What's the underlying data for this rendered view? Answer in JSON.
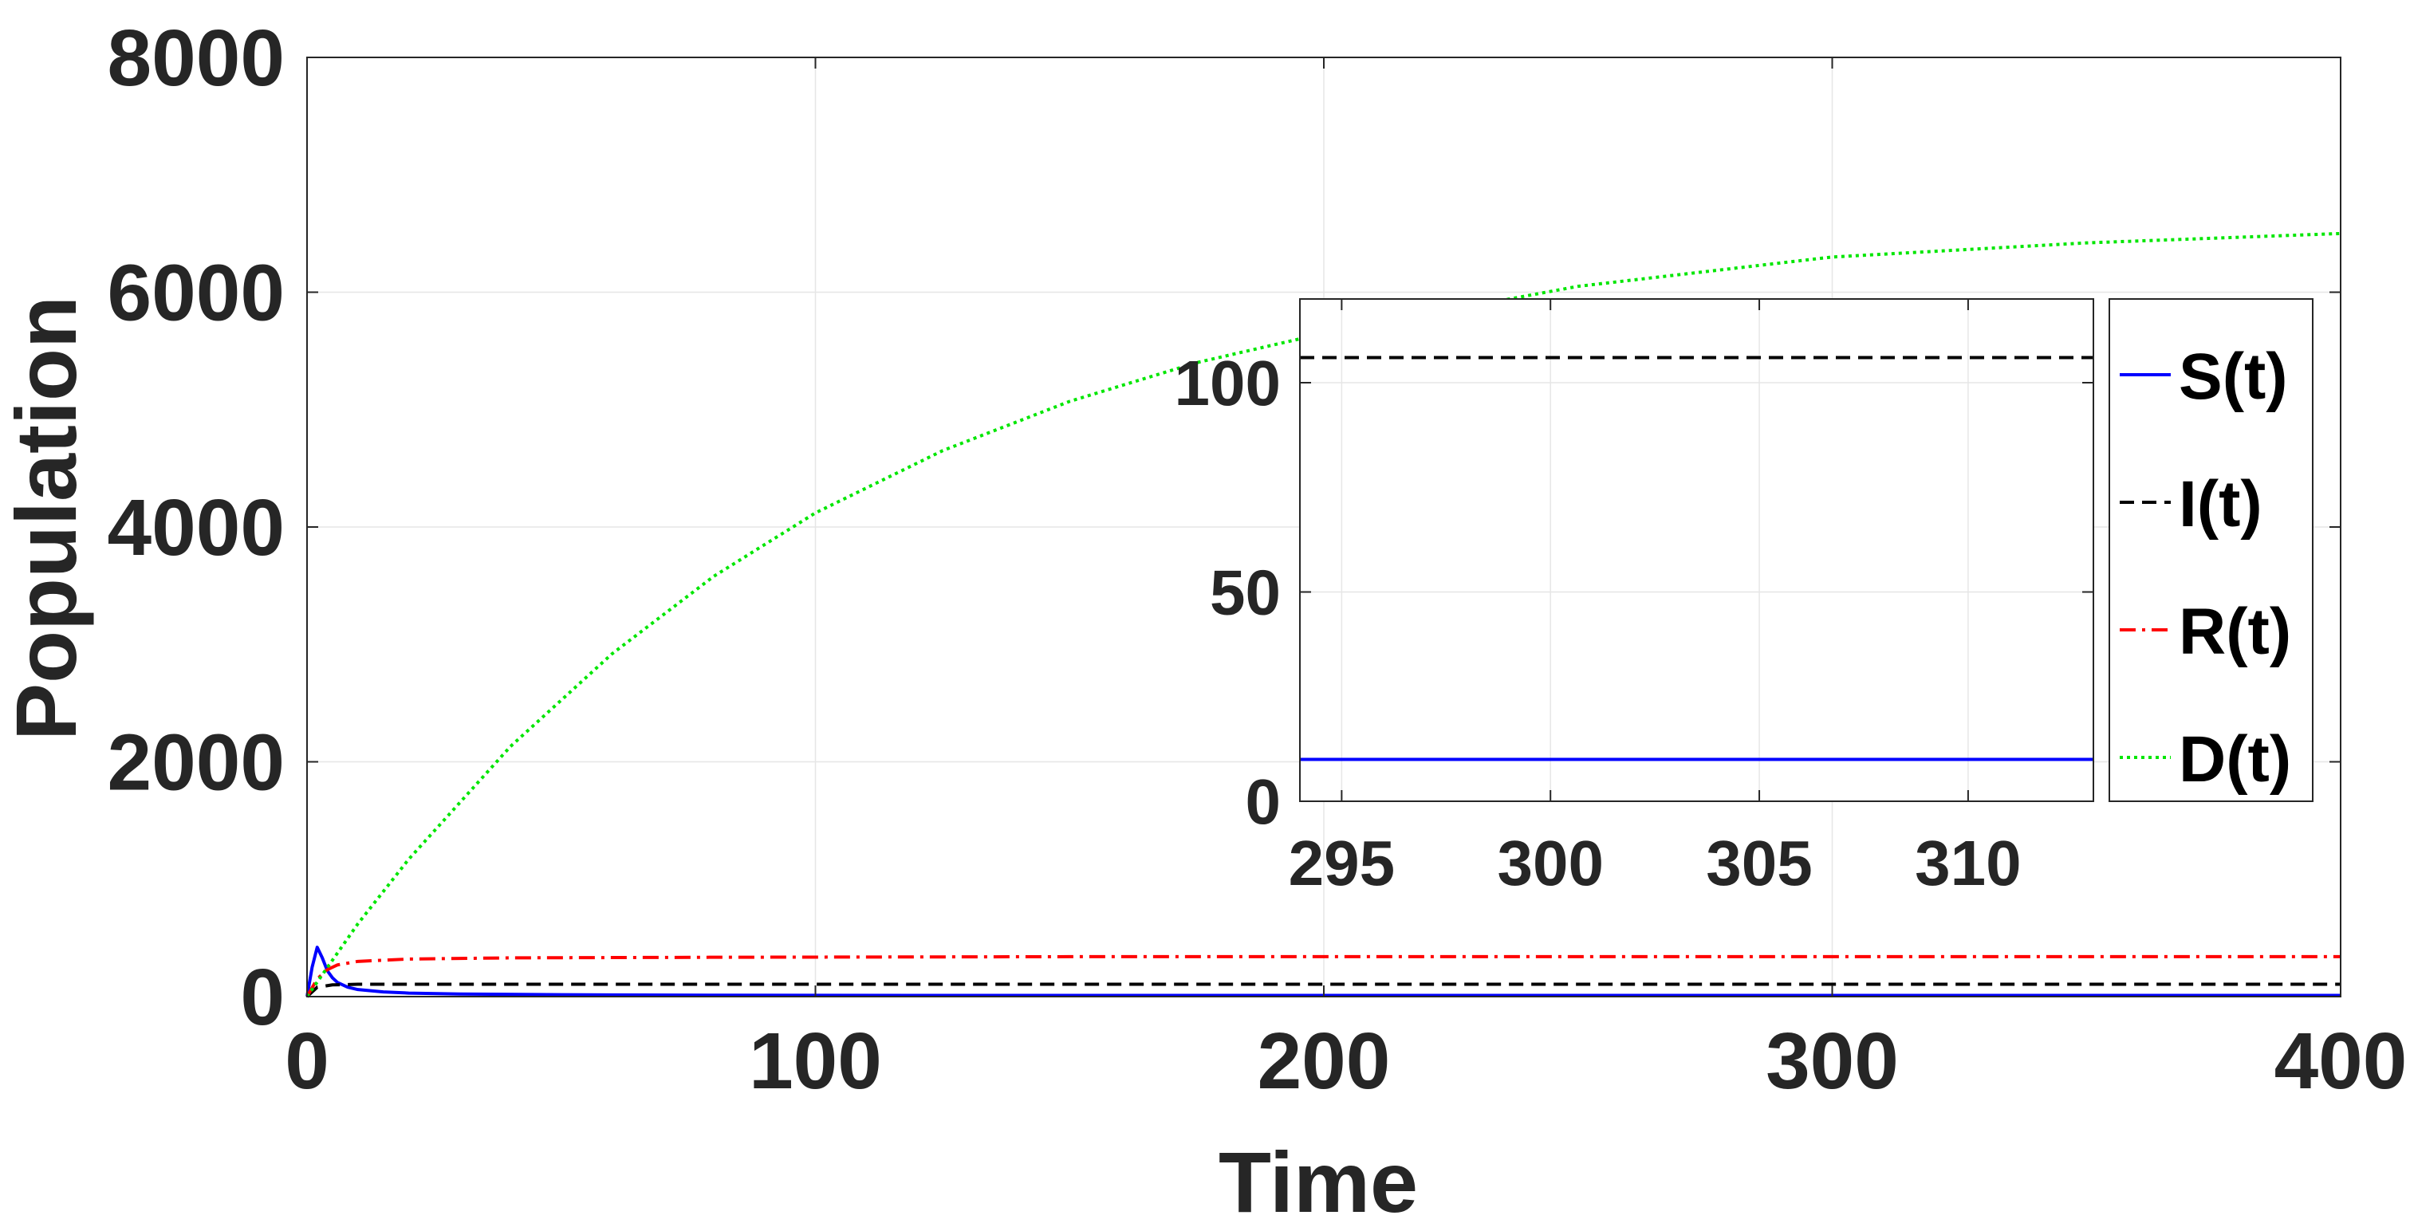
{
  "chart_data": [
    {
      "type": "line",
      "title": "",
      "xlabel": "Time",
      "ylabel": "Population",
      "xlim": [
        0,
        400
      ],
      "ylim": [
        0,
        8000
      ],
      "xticks": [
        0,
        100,
        200,
        300,
        400
      ],
      "yticks": [
        0,
        2000,
        4000,
        6000,
        8000
      ],
      "grid": true,
      "series": [
        {
          "name": "S(t)",
          "color": "#0000ff",
          "style": "solid",
          "x": [
            0,
            1,
            2,
            3,
            4,
            5,
            6,
            8,
            10,
            15,
            20,
            30,
            50,
            80,
            120,
            200,
            300,
            400
          ],
          "y": [
            0,
            250,
            420,
            330,
            220,
            160,
            120,
            80,
            60,
            40,
            30,
            22,
            16,
            12,
            10,
            10,
            10,
            10
          ]
        },
        {
          "name": "I(t)",
          "color": "#000000",
          "style": "dashed",
          "x": [
            0,
            2,
            5,
            10,
            20,
            40,
            80,
            150,
            300,
            400
          ],
          "y": [
            0,
            80,
            100,
            105,
            105,
            105,
            105,
            105,
            105,
            105
          ]
        },
        {
          "name": "R(t)",
          "color": "#ff0000",
          "style": "dashdot",
          "x": [
            0,
            2,
            4,
            6,
            10,
            20,
            40,
            80,
            150,
            300,
            400
          ],
          "y": [
            0,
            150,
            230,
            270,
            300,
            320,
            330,
            335,
            340,
            340,
            340
          ]
        },
        {
          "name": "D(t)",
          "color": "#00e600",
          "style": "dotted",
          "x": [
            0,
            10,
            20,
            40,
            60,
            80,
            100,
            125,
            150,
            175,
            200,
            250,
            300,
            350,
            400
          ],
          "y": [
            0,
            620,
            1170,
            2130,
            2920,
            3580,
            4120,
            4650,
            5070,
            5400,
            5650,
            6050,
            6300,
            6420,
            6500
          ]
        }
      ]
    },
    {
      "type": "line",
      "title": "",
      "xlabel": "",
      "ylabel": "",
      "xlim": [
        294,
        313
      ],
      "ylim": [
        0,
        120
      ],
      "xticks": [
        295,
        300,
        305,
        310
      ],
      "yticks": [
        0,
        50,
        100
      ],
      "grid": true,
      "series": [
        {
          "name": "S(t)",
          "color": "#0000ff",
          "style": "solid",
          "x": [
            294,
            313
          ],
          "y": [
            10,
            10
          ]
        },
        {
          "name": "I(t)",
          "color": "#000000",
          "style": "dashed",
          "x": [
            294,
            313
          ],
          "y": [
            106,
            106
          ]
        }
      ]
    }
  ],
  "legend": {
    "placement": "right",
    "entries": [
      {
        "label": "S(t)",
        "color": "#0000ff",
        "style": "solid"
      },
      {
        "label": "I(t)",
        "color": "#000000",
        "style": "dashed"
      },
      {
        "label": "R(t)",
        "color": "#ff0000",
        "style": "dashdot"
      },
      {
        "label": "D(t)",
        "color": "#00e600",
        "style": "dotted"
      }
    ]
  }
}
